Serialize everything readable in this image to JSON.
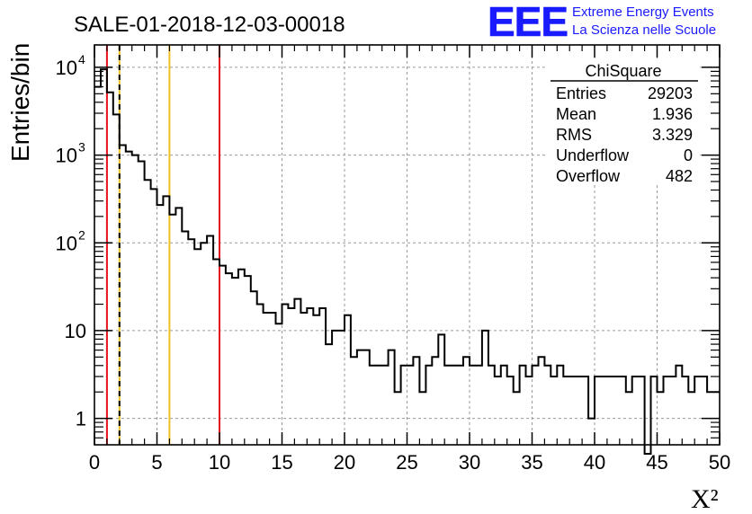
{
  "header": {
    "title": "SALE-01-2018-12-03-00018",
    "logo_text": "EEE",
    "logo_line1": "Extreme Energy Events",
    "logo_line2": "La Scienza nelle Scuole"
  },
  "colors": {
    "logo": "#1a1aff",
    "red_line": "#e8101a",
    "yellow_line": "#f0c020",
    "grid": "#9a9a9a"
  },
  "stats": {
    "title": "ChiSquare",
    "rows": [
      {
        "label": "Entries",
        "value": "29203"
      },
      {
        "label": "Mean",
        "value": "1.936"
      },
      {
        "label": "RMS",
        "value": "3.329"
      },
      {
        "label": "Underflow",
        "value": "0"
      },
      {
        "label": "Overflow",
        "value": "482"
      }
    ]
  },
  "chart_data": {
    "type": "histogram",
    "title": "SALE-01-2018-12-03-00018",
    "xlabel": "X²",
    "ylabel": "Entries/bin",
    "xlim": [
      0,
      50
    ],
    "ylim": [
      0.5,
      18000
    ],
    "yscale": "log",
    "grid": true,
    "bin_width": 0.5,
    "x_ticks": [
      "0",
      "5",
      "10",
      "15",
      "20",
      "25",
      "30",
      "35",
      "40",
      "45",
      "50"
    ],
    "y_ticks": [
      {
        "value": 1,
        "label": "1"
      },
      {
        "value": 10,
        "label": "10"
      },
      {
        "value": 100,
        "label": "10",
        "exp": "2"
      },
      {
        "value": 1000,
        "label": "10",
        "exp": "3"
      },
      {
        "value": 10000,
        "label": "10",
        "exp": "4"
      }
    ],
    "values": [
      6000,
      9500,
      5200,
      2900,
      1300,
      1100,
      1000,
      850,
      520,
      410,
      270,
      340,
      210,
      250,
      135,
      110,
      85,
      100,
      120,
      65,
      55,
      45,
      40,
      50,
      42,
      28,
      20,
      16,
      16,
      12,
      20,
      18,
      23,
      16,
      18,
      15,
      18,
      7,
      10,
      10,
      15,
      5,
      6,
      6,
      4,
      4,
      4,
      6,
      2,
      4,
      4,
      5,
      2,
      4,
      5,
      9,
      4,
      4,
      4,
      5,
      4,
      4,
      10,
      4,
      3,
      4,
      3,
      2,
      4,
      3,
      4,
      5,
      4,
      3,
      4,
      3,
      3,
      3,
      3,
      1,
      3,
      3,
      3,
      3,
      3,
      2,
      3,
      3,
      0,
      3,
      2,
      3,
      3,
      4,
      3,
      2,
      3,
      3,
      2,
      2
    ],
    "vertical_lines": [
      {
        "x": 1,
        "color": "red",
        "style": "solid"
      },
      {
        "x": 2,
        "color": "yellow",
        "style": "solid"
      },
      {
        "x": 2,
        "color": "black",
        "style": "dashed"
      },
      {
        "x": 6,
        "color": "yellow",
        "style": "solid"
      },
      {
        "x": 10,
        "color": "red",
        "style": "solid"
      }
    ]
  }
}
